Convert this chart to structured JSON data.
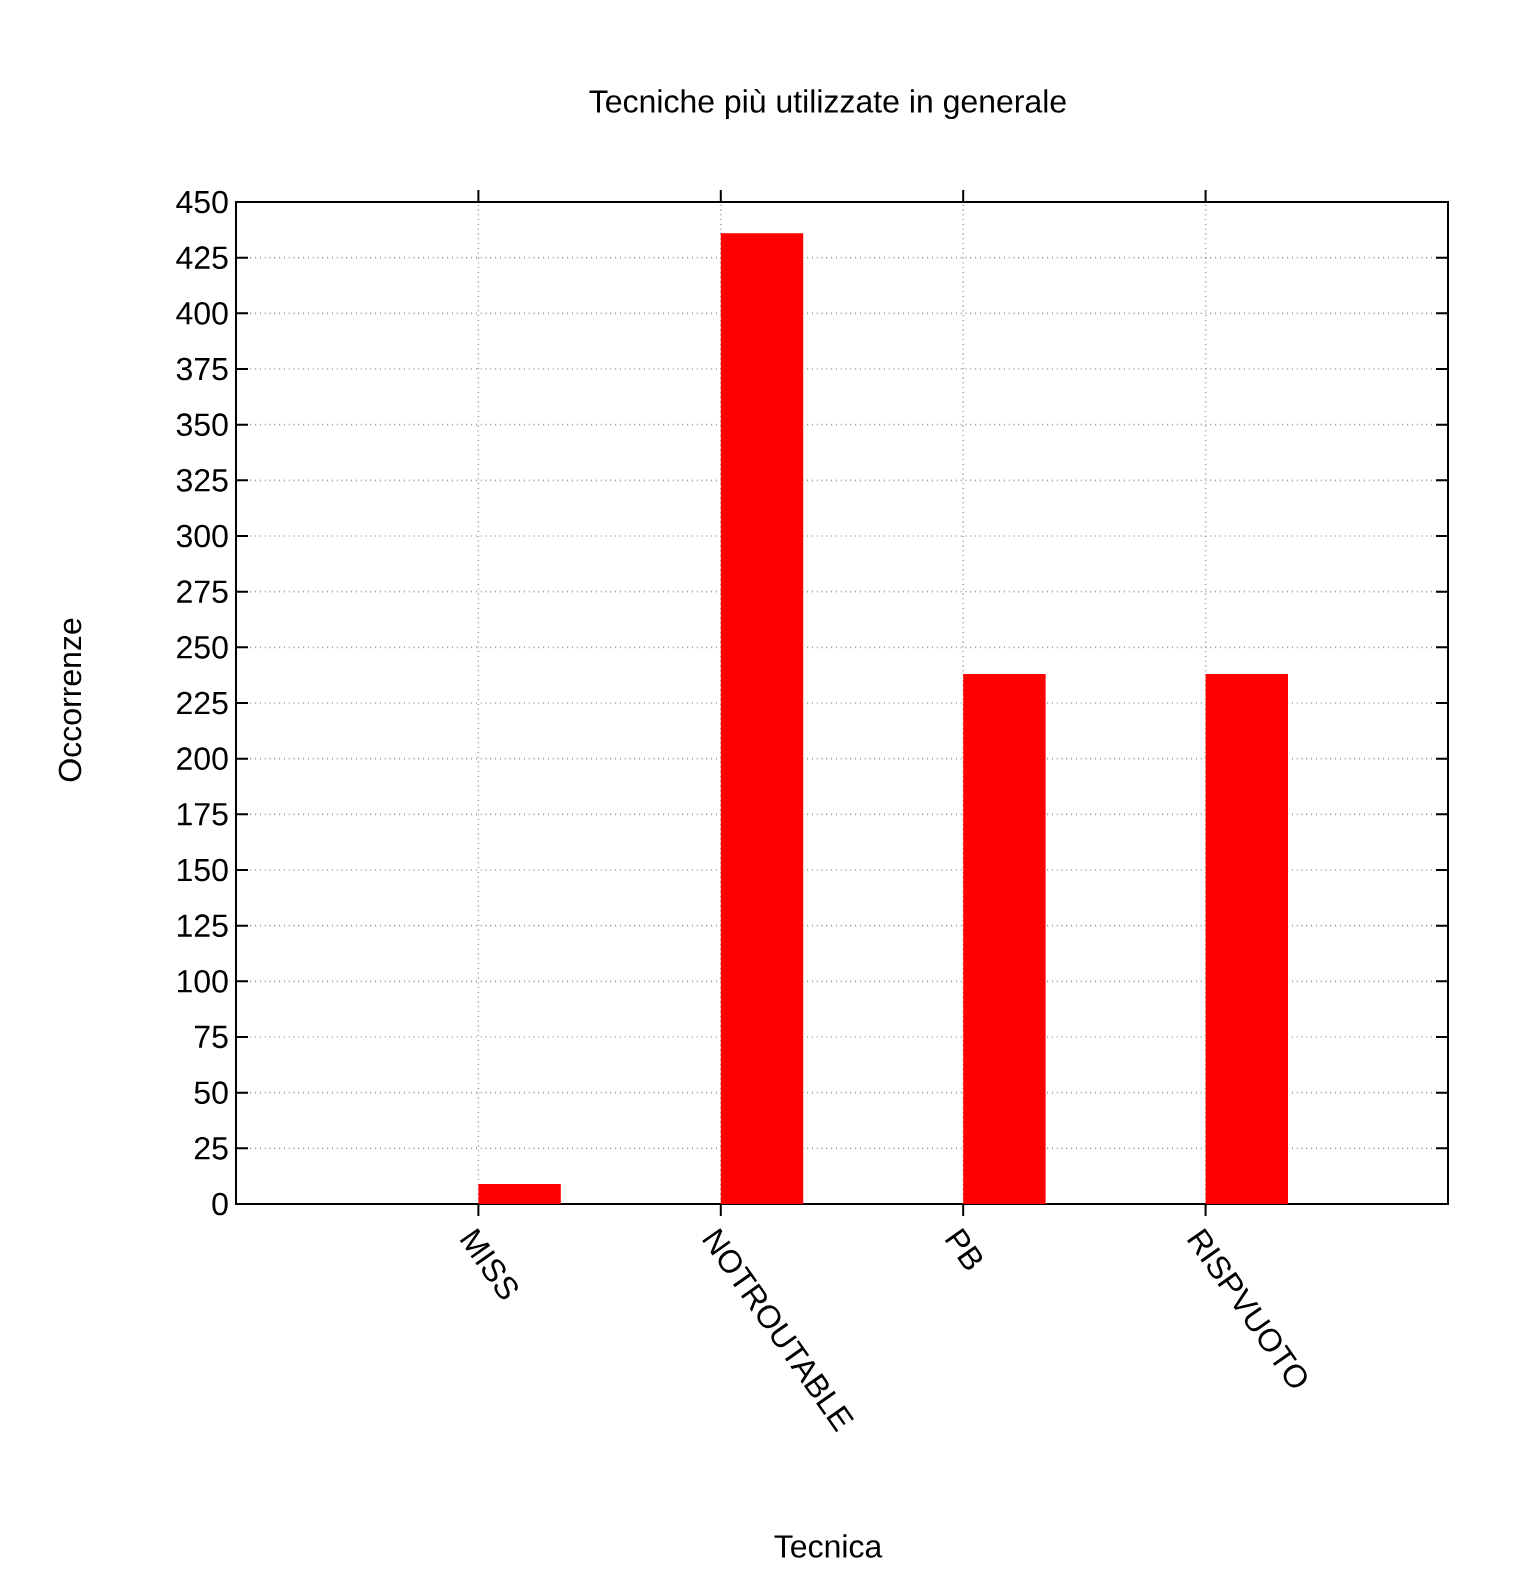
{
  "chart_data": {
    "type": "bar",
    "title": "Tecniche più utilizzate in generale",
    "xlabel": "Tecnica",
    "ylabel": "Occorrenze",
    "categories": [
      "MISS",
      "NOTROUTABLE",
      "PB",
      "RISPVUOTO"
    ],
    "values": [
      9,
      436,
      238,
      238
    ],
    "color": "#ff0000",
    "ylim": [
      0,
      450
    ],
    "yticks": [
      0,
      25,
      50,
      75,
      100,
      125,
      150,
      175,
      200,
      225,
      250,
      275,
      300,
      325,
      350,
      375,
      400,
      425,
      450
    ],
    "grid": true
  }
}
